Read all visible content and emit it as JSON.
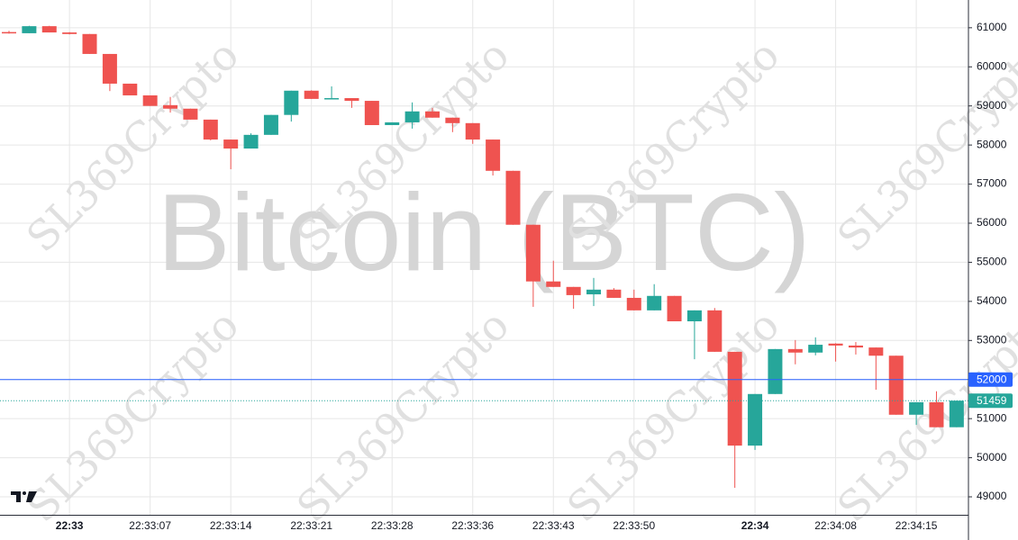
{
  "chart_data": {
    "type": "candlestick",
    "watermark": "Bitcoin (BTC)",
    "brand": "SL369Crypto",
    "x": [
      null,
      null,
      null,
      "22:33",
      null,
      null,
      null,
      "22:33:07",
      null,
      null,
      null,
      "22:33:14",
      null,
      null,
      null,
      "22:33:21",
      null,
      null,
      null,
      "22:33:28",
      null,
      null,
      null,
      "22:33:36",
      null,
      null,
      null,
      "22:33:43",
      null,
      null,
      null,
      "22:33:50",
      null,
      null,
      null,
      null,
      null,
      "22:34",
      null,
      null,
      null,
      "22:34:08",
      null,
      null,
      null,
      "22:34:15",
      null,
      null
    ],
    "open": [
      60890,
      60860,
      61040,
      60880,
      60840,
      60330,
      59570,
      59270,
      59020,
      58930,
      58650,
      58140,
      57910,
      58260,
      58770,
      59390,
      59180,
      59200,
      59130,
      58510,
      58580,
      58860,
      58700,
      58560,
      58140,
      57340,
      55960,
      54510,
      54370,
      54180,
      54300,
      54090,
      53770,
      54140,
      53490,
      53770,
      52710,
      50310,
      51630,
      52780,
      52690,
      52920,
      52870,
      52820,
      52610,
      51100,
      51420,
      50780
    ],
    "high": [
      60920,
      61050,
      61050,
      60890,
      60840,
      60330,
      59570,
      59270,
      59230,
      58930,
      58650,
      58140,
      58300,
      58770,
      59390,
      59400,
      59500,
      59200,
      59130,
      58580,
      59090,
      58950,
      58700,
      58560,
      58140,
      57340,
      55960,
      55040,
      54370,
      54600,
      54340,
      54300,
      54440,
      54140,
      53770,
      53830,
      52710,
      51630,
      52780,
      53010,
      53080,
      52930,
      52960,
      52820,
      52610,
      51420,
      51700,
      51460
    ],
    "low": [
      60850,
      60860,
      60880,
      60830,
      60330,
      59380,
      59270,
      59000,
      58830,
      58650,
      58120,
      57380,
      57910,
      58260,
      58600,
      59180,
      59180,
      58950,
      58510,
      58510,
      58420,
      58700,
      58330,
      58030,
      57220,
      55960,
      53860,
      54370,
      53810,
      53880,
      54090,
      53770,
      53770,
      53490,
      52520,
      52710,
      49230,
      50200,
      51630,
      52390,
      52620,
      52460,
      52640,
      51740,
      51100,
      50840,
      50780,
      50780
    ],
    "close": [
      60870,
      61040,
      60880,
      60840,
      60330,
      59570,
      59270,
      59000,
      58930,
      58650,
      58140,
      57910,
      58260,
      58770,
      59390,
      59180,
      59200,
      59130,
      58510,
      58580,
      58860,
      58700,
      58560,
      58140,
      57340,
      55960,
      54510,
      54370,
      54160,
      54300,
      54090,
      53770,
      54140,
      53490,
      53770,
      52710,
      50310,
      51630,
      52780,
      52690,
      52890,
      52870,
      52820,
      52610,
      51100,
      51420,
      50780,
      51460
    ],
    "up_color": "#26a69a",
    "down_color": "#ef5350",
    "ylim": [
      48540,
      61710
    ],
    "yticks": [
      49000,
      50000,
      51000,
      52000,
      53000,
      54000,
      55000,
      56000,
      57000,
      58000,
      59000,
      60000,
      61000
    ],
    "price_lines": [
      {
        "value": 52000,
        "color": "#2962ff",
        "style": "solid"
      },
      {
        "value": 51459,
        "color": "#26a69a",
        "style": "dotted"
      }
    ],
    "grid": true
  }
}
